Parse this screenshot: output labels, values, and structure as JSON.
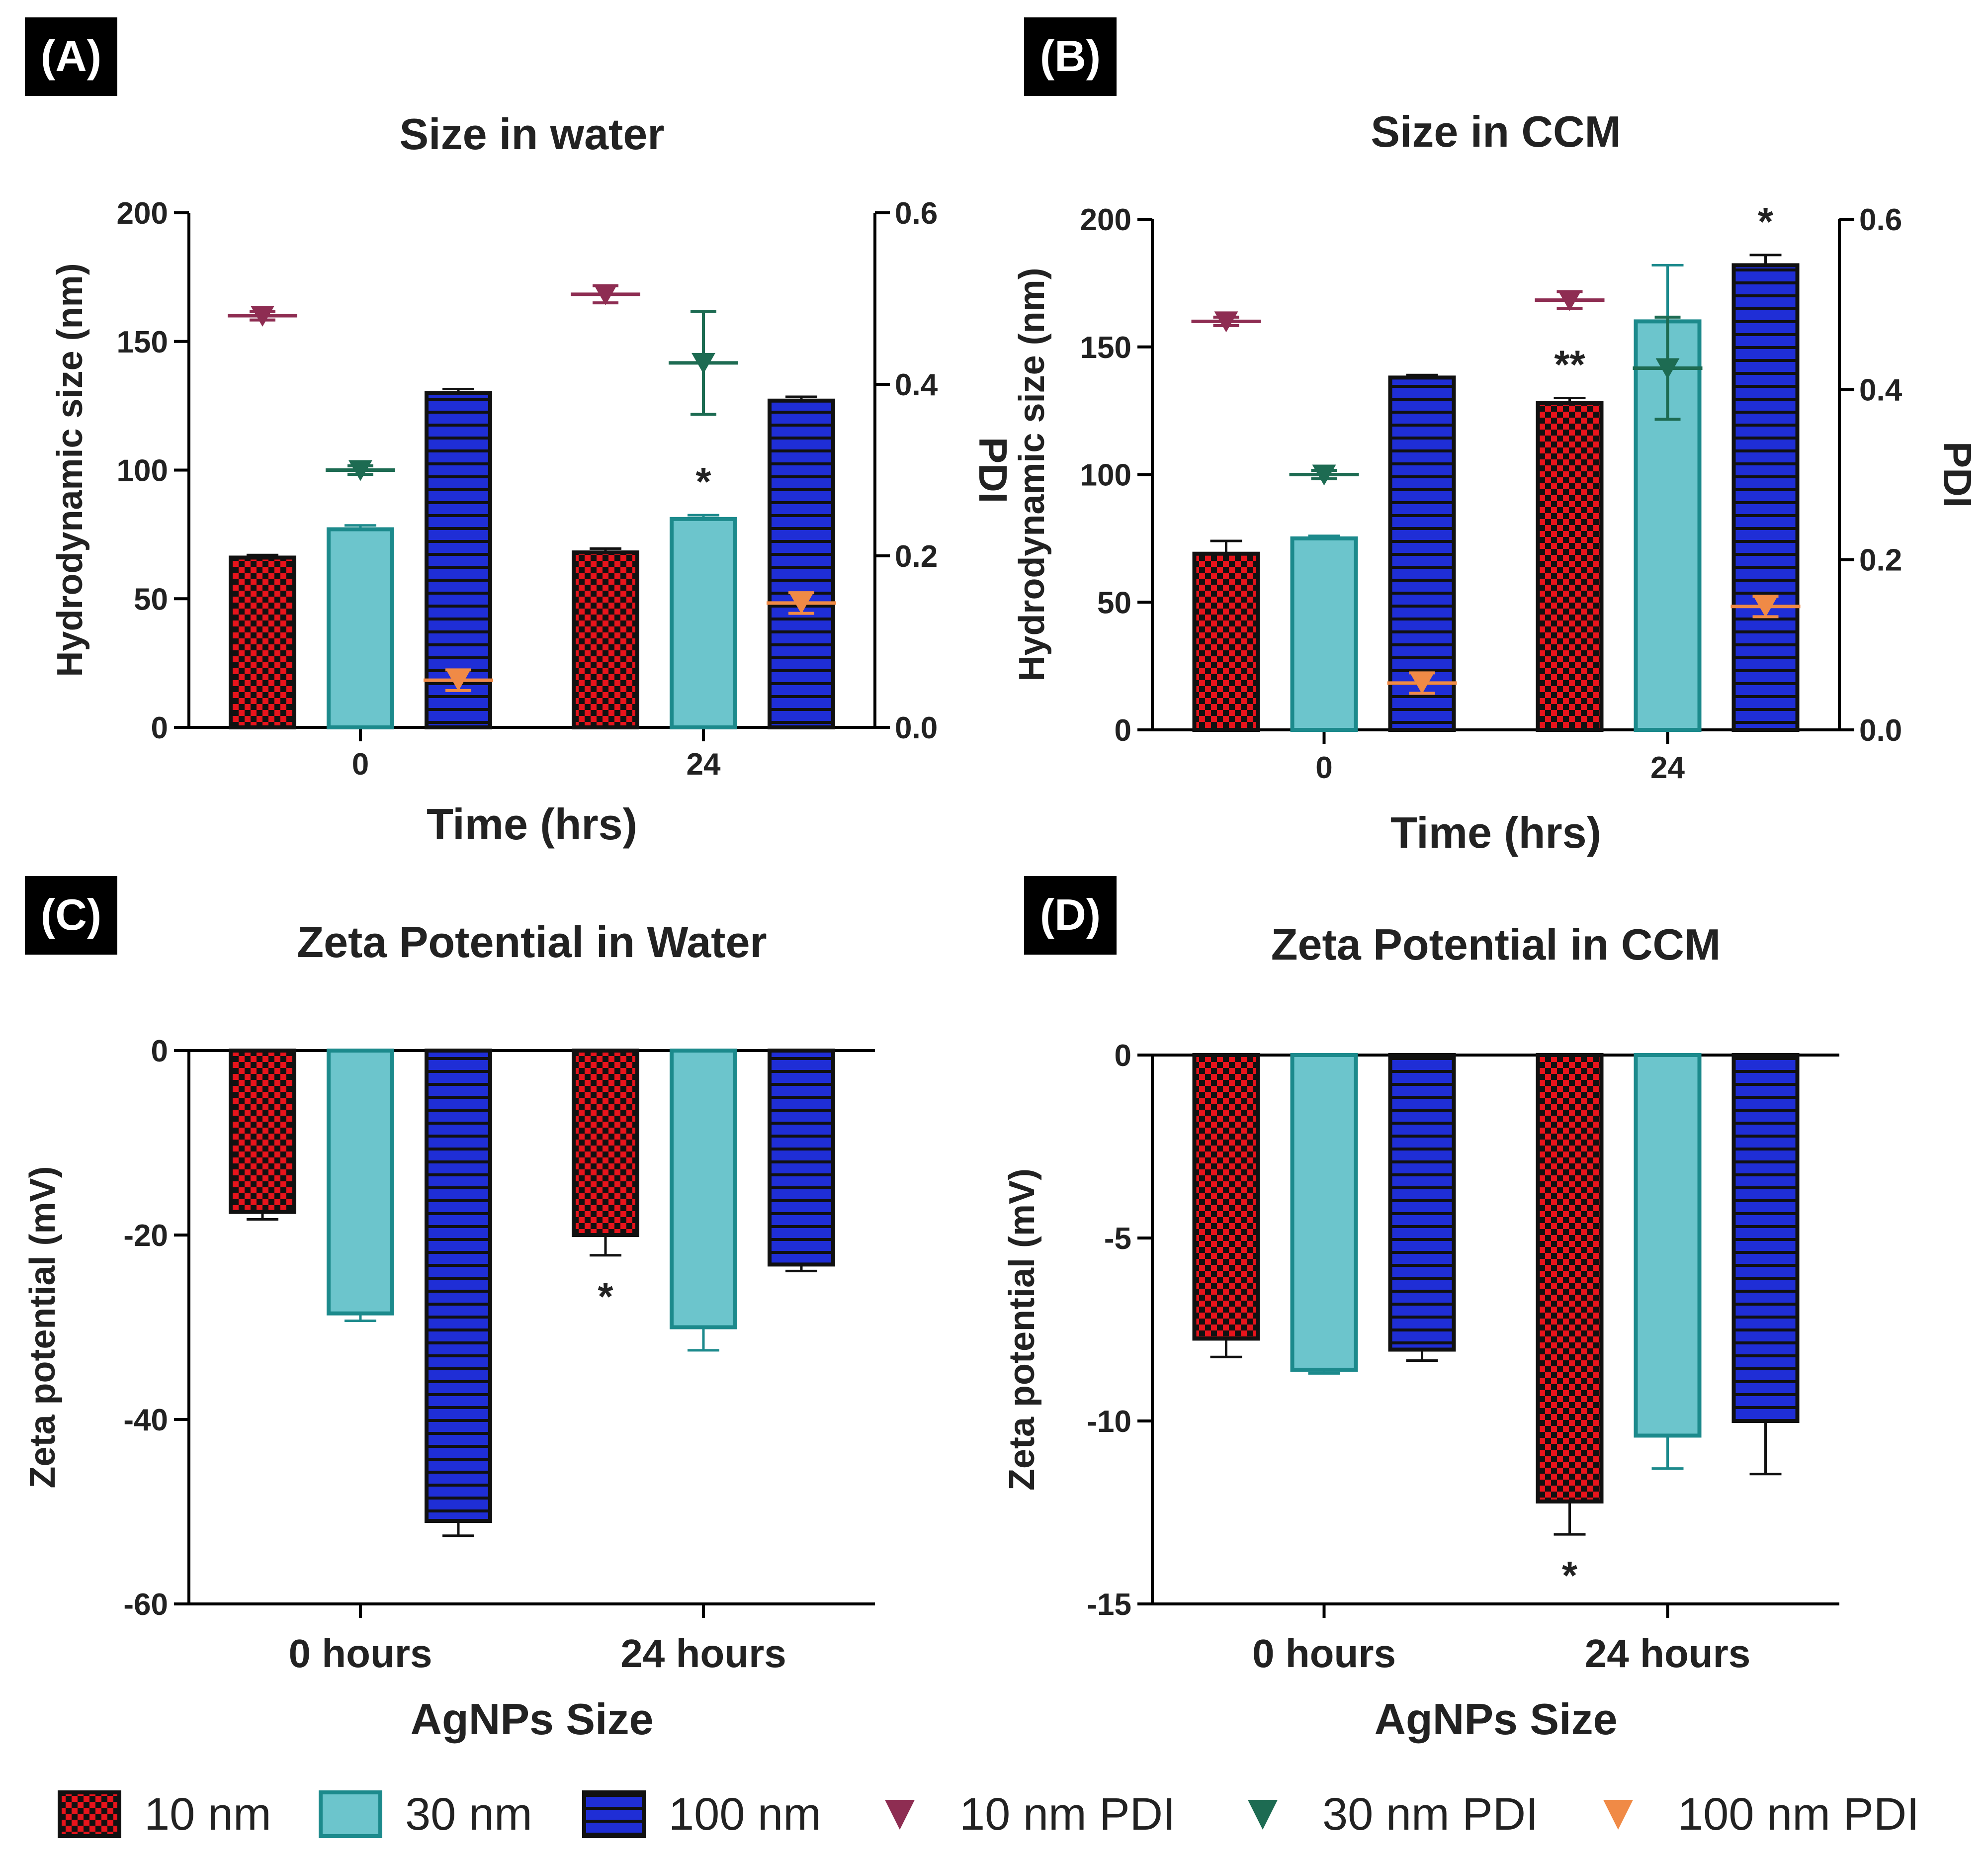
{
  "figure": {
    "legend": {
      "items": [
        {
          "id": "n10",
          "label": "10 nm",
          "kind": "bar"
        },
        {
          "id": "n30",
          "label": "30 nm",
          "kind": "bar"
        },
        {
          "id": "n100",
          "label": "100 nm",
          "kind": "bar"
        },
        {
          "id": "p10",
          "label": "10 nm PDI",
          "kind": "marker"
        },
        {
          "id": "p30",
          "label": "30 nm PDI",
          "kind": "marker"
        },
        {
          "id": "p100",
          "label": "100 nm PDI",
          "kind": "marker"
        }
      ]
    },
    "colors": {
      "red": "#e8141c",
      "black": "#111111",
      "teal_fill": "#6cc5cc",
      "teal_edge": "#1c8a8c",
      "blue": "#1f2ed6",
      "pdi_10": "#8e2d52",
      "pdi_30": "#1d6b52",
      "pdi_100": "#f08a46"
    }
  },
  "chart_data": [
    {
      "panel_label": "(A)",
      "type": "bar",
      "title": "Size in water",
      "xlabel": "Time (hrs)",
      "ylabel": "Hydrodynamic size (nm)",
      "y2label": "PDI",
      "categories": [
        "0",
        "24"
      ],
      "ylim": [
        0,
        200
      ],
      "yticks": [
        0,
        50,
        100,
        150,
        200
      ],
      "y2lim": [
        0,
        0.6
      ],
      "y2ticks": [
        "0.0",
        "0.2",
        "0.4",
        "0.6"
      ],
      "series": [
        {
          "name": "10 nm",
          "values": [
            66,
            68
          ],
          "errors": [
            1,
            1.5
          ]
        },
        {
          "name": "30 nm",
          "values": [
            77,
            81
          ],
          "errors": [
            1.5,
            1.5
          ]
        },
        {
          "name": "100 nm",
          "values": [
            130,
            127
          ],
          "errors": [
            1.5,
            1.5
          ]
        }
      ],
      "pdi_series": [
        {
          "name": "10 nm PDI",
          "values": [
            0.48,
            0.505
          ],
          "errors": [
            0.005,
            0.01
          ]
        },
        {
          "name": "30 nm PDI",
          "values": [
            0.3,
            0.425
          ],
          "errors": [
            0.005,
            0.06
          ]
        },
        {
          "name": "100 nm PDI",
          "values": [
            0.055,
            0.145
          ],
          "errors": [
            0.012,
            0.012
          ]
        }
      ],
      "annotations": [
        {
          "text": "*",
          "series": 1,
          "category": 1
        }
      ]
    },
    {
      "panel_label": "(B)",
      "type": "bar",
      "title": "Size in CCM",
      "xlabel": "Time (hrs)",
      "ylabel": "Hydrodynamic size (nm)",
      "y2label": "PDI",
      "categories": [
        "0",
        "24"
      ],
      "ylim": [
        0,
        200
      ],
      "yticks": [
        0,
        50,
        100,
        150,
        200
      ],
      "y2lim": [
        0,
        0.6
      ],
      "y2ticks": [
        "0.0",
        "0.2",
        "0.4",
        "0.6"
      ],
      "series": [
        {
          "name": "10 nm",
          "values": [
            69,
            128
          ],
          "errors": [
            5,
            2
          ]
        },
        {
          "name": "30 nm",
          "values": [
            75,
            160
          ],
          "errors": [
            1,
            22
          ]
        },
        {
          "name": "100 nm",
          "values": [
            138,
            182
          ],
          "errors": [
            1,
            4
          ]
        }
      ],
      "pdi_series": [
        {
          "name": "10 nm PDI",
          "values": [
            0.48,
            0.505
          ],
          "errors": [
            0.005,
            0.01
          ]
        },
        {
          "name": "30 nm PDI",
          "values": [
            0.3,
            0.425
          ],
          "errors": [
            0.005,
            0.06
          ]
        },
        {
          "name": "100 nm PDI",
          "values": [
            0.055,
            0.145
          ],
          "errors": [
            0.012,
            0.012
          ]
        }
      ],
      "annotations": [
        {
          "text": "**",
          "series": 0,
          "category": 1
        },
        {
          "text": "*",
          "series": 2,
          "category": 1
        }
      ]
    },
    {
      "panel_label": "(C)",
      "type": "bar",
      "title": "Zeta Potential in Water",
      "xlabel": "AgNPs Size",
      "ylabel": "Zeta potential (mV)",
      "categories": [
        "0 hours",
        "24 hours"
      ],
      "ylim": [
        -60,
        0
      ],
      "yticks": [
        0,
        -20,
        -40,
        -60
      ],
      "series": [
        {
          "name": "10 nm",
          "values": [
            -17.5,
            -20
          ],
          "errors": [
            0.8,
            2.2
          ]
        },
        {
          "name": "30 nm",
          "values": [
            -28.5,
            -30
          ],
          "errors": [
            0.8,
            2.5
          ]
        },
        {
          "name": "100 nm",
          "values": [
            -51,
            -23.2
          ],
          "errors": [
            1.6,
            0.7
          ]
        }
      ],
      "annotations": [
        {
          "text": "*",
          "series": 0,
          "category": 1
        }
      ]
    },
    {
      "panel_label": "(D)",
      "type": "bar",
      "title": "Zeta Potential in CCM",
      "xlabel": "AgNPs Size",
      "ylabel": "Zeta potential (mV)",
      "categories": [
        "0 hours",
        "24 hours"
      ],
      "ylim": [
        -15,
        0
      ],
      "yticks": [
        0,
        -5,
        -10,
        -15
      ],
      "series": [
        {
          "name": "10 nm",
          "values": [
            -7.75,
            -12.2
          ],
          "errors": [
            0.5,
            0.9
          ]
        },
        {
          "name": "30 nm",
          "values": [
            -8.6,
            -10.4
          ],
          "errors": [
            0.1,
            0.9
          ]
        },
        {
          "name": "100 nm",
          "values": [
            -8.05,
            -10
          ],
          "errors": [
            0.3,
            1.45
          ]
        }
      ],
      "annotations": [
        {
          "text": "*",
          "series": 0,
          "category": 1
        }
      ]
    }
  ]
}
